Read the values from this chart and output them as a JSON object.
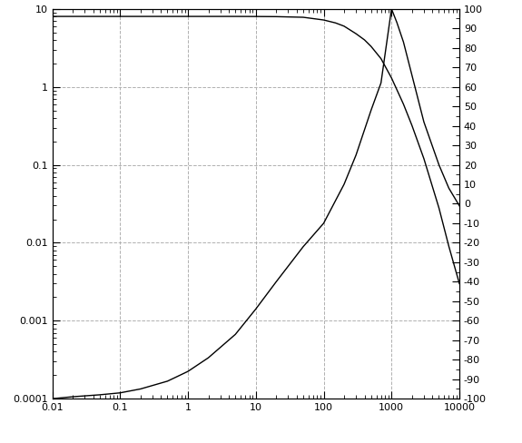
{
  "title": "",
  "xlim": [
    0.01,
    10000
  ],
  "ylim_left": [
    0.0001,
    10
  ],
  "ylim_right": [
    -100,
    100
  ],
  "x_ticks": [
    0.01,
    0.1,
    1,
    10,
    100,
    1000,
    10000
  ],
  "x_tick_labels": [
    "0.01",
    "0.1",
    "1",
    "10",
    "100",
    "1000",
    "10000"
  ],
  "y_left_ticks": [
    0.0001,
    0.001,
    0.01,
    0.1,
    1,
    10
  ],
  "y_left_labels": [
    "0.0001",
    "0.001",
    "0.01",
    "0.1",
    "1",
    "10"
  ],
  "y_right_ticks": [
    -100,
    -90,
    -80,
    -70,
    -60,
    -50,
    -40,
    -30,
    -20,
    -10,
    0,
    10,
    20,
    30,
    40,
    50,
    60,
    70,
    80,
    90,
    100
  ],
  "background_color": "#ffffff",
  "grid_color": "#b0b0b0",
  "line_color": "#000000",
  "magnitude_x": [
    0.01,
    0.02,
    0.05,
    0.1,
    0.2,
    0.5,
    1,
    2,
    5,
    10,
    20,
    50,
    100,
    150,
    200,
    300,
    400,
    500,
    700,
    1000,
    1500,
    2000,
    3000,
    5000,
    7000,
    10000
  ],
  "magnitude_y": [
    8.0,
    8.0,
    8.0,
    8.0,
    8.0,
    8.0,
    8.0,
    8.0,
    8.0,
    7.98,
    7.95,
    7.8,
    7.2,
    6.6,
    6.0,
    4.8,
    4.0,
    3.3,
    2.3,
    1.3,
    0.6,
    0.32,
    0.12,
    0.028,
    0.009,
    0.003
  ],
  "phase_x": [
    0.01,
    0.02,
    0.05,
    0.1,
    0.2,
    0.5,
    1,
    2,
    5,
    10,
    20,
    50,
    100,
    200,
    300,
    500,
    700,
    1000,
    1200,
    1500,
    2000,
    3000,
    5000,
    7000,
    10000
  ],
  "phase_y": [
    -100,
    -99,
    -98,
    -97,
    -95,
    -91,
    -86,
    -79,
    -67,
    -54,
    -40,
    -22,
    -10,
    10,
    25,
    48,
    62,
    100,
    93,
    83,
    66,
    42,
    20,
    8,
    -1
  ],
  "figsize": [
    5.75,
    4.88
  ],
  "dpi": 100
}
